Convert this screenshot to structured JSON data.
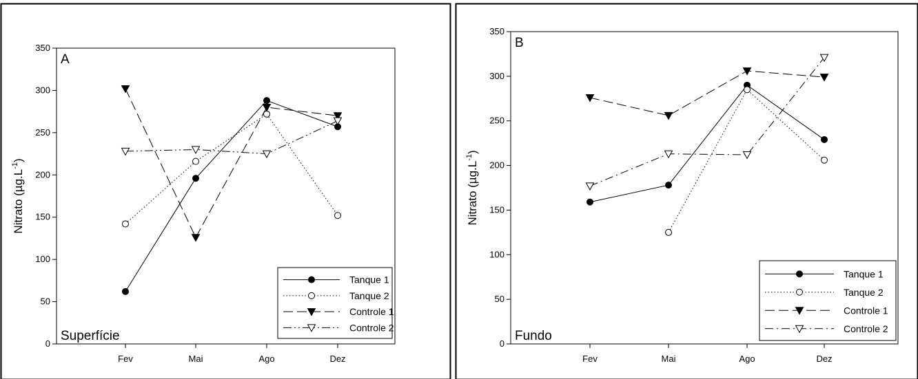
{
  "chart_data": [
    {
      "type": "line",
      "panel_letter": "A",
      "depth_label": "Superfície",
      "ylabel": "Nitrato (µg.L-1)",
      "ylabel_main": "Nitrato (µg.L",
      "ylabel_sup": "-1",
      "ylabel_close": ")",
      "ylim": [
        0,
        350
      ],
      "yticks": [
        0,
        50,
        100,
        150,
        200,
        250,
        300,
        350
      ],
      "categories": [
        "Fev",
        "Mai",
        "Ago",
        "Dez"
      ],
      "legend_position": "bottom-right",
      "series": [
        {
          "name": "Tanque 1",
          "marker": "filled-circle",
          "dash": "solid",
          "values": [
            62,
            196,
            288,
            257
          ]
        },
        {
          "name": "Tanque 2",
          "marker": "open-circle",
          "dash": "dotted",
          "values": [
            142,
            216,
            272,
            152
          ]
        },
        {
          "name": "Controle 1",
          "marker": "filled-triangle-down",
          "dash": "dashed",
          "values": [
            302,
            126,
            280,
            270
          ]
        },
        {
          "name": "Controle 2",
          "marker": "open-triangle-down",
          "dash": "dash-dot-dot",
          "values": [
            228,
            230,
            225,
            264
          ]
        }
      ]
    },
    {
      "type": "line",
      "panel_letter": "B",
      "depth_label": "Fundo",
      "ylabel": "Nitrato (µg.L-1)",
      "ylabel_main": "Nitrato (µg.L",
      "ylabel_sup": "-1",
      "ylabel_close": ")",
      "ylim": [
        0,
        350
      ],
      "yticks": [
        0,
        50,
        100,
        150,
        200,
        250,
        300,
        350
      ],
      "categories": [
        "Fev",
        "Mai",
        "Ago",
        "Dez"
      ],
      "legend_position": "bottom-right",
      "series": [
        {
          "name": "Tanque 1",
          "marker": "filled-circle",
          "dash": "solid",
          "values": [
            159,
            178,
            290,
            229
          ]
        },
        {
          "name": "Tanque 2",
          "marker": "open-circle",
          "dash": "dotted",
          "values": [
            null,
            125,
            285,
            206
          ]
        },
        {
          "name": "Controle 1",
          "marker": "filled-triangle-down",
          "dash": "dashed",
          "values": [
            276,
            256,
            306,
            299
          ]
        },
        {
          "name": "Controle 2",
          "marker": "open-triangle-down",
          "dash": "dash-dot",
          "values": [
            177,
            213,
            212,
            321
          ]
        }
      ]
    }
  ]
}
